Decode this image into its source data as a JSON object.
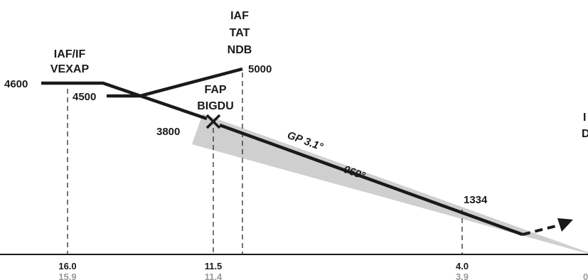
{
  "fixes": {
    "iaf_if": {
      "line1": "IAF/IF",
      "line2": "VEXAP"
    },
    "iaf_tat": {
      "line1": "IAF",
      "line2": "TAT",
      "line3": "NDB"
    },
    "fap": {
      "line1": "FAP",
      "line2": "BIGDU"
    },
    "right_edge": {
      "line1": "I",
      "line2": "D"
    }
  },
  "altitudes": {
    "alt_4600": "4600",
    "alt_4500": "4500",
    "alt_5000": "5000",
    "alt_3800": "3800",
    "alt_1334": "1334"
  },
  "glidepath": {
    "angle_label": "GP 3.1°",
    "course_label": "069°"
  },
  "distances": {
    "d1": {
      "main": "16.0",
      "sub": "15.9"
    },
    "d2": {
      "main": "11.5",
      "sub": "11.4"
    },
    "d3": {
      "main": "4.0",
      "sub": "3.9"
    },
    "d4": {
      "sub": "0"
    }
  },
  "colors": {
    "path": "#1a1a1a",
    "glide_cone": "#cfcfcf",
    "secondary_text": "#9a9a9a"
  }
}
